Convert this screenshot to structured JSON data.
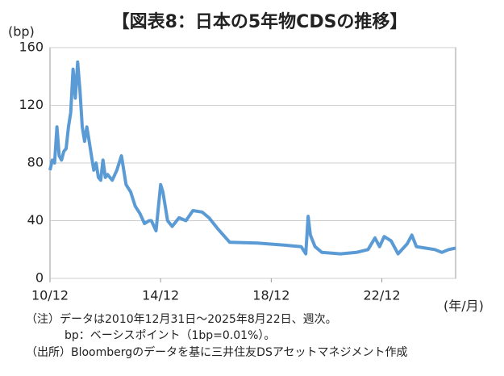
{
  "chart_data": {
    "type": "line",
    "title": "【図表8：日本の5年物CDSの推移】",
    "y_label": "(bp)",
    "x_label": "(年/月)",
    "notes": [
      "（注）データは2010年12月31日～2025年8月22日、週次。",
      "bp：ベーシスポイント（1bp=0.01%）。",
      "（出所）Bloombergのデータを基に三井住友DSアセットマネジメント作成"
    ],
    "color": "#5b9bd5",
    "grid": true,
    "x": [
      "2010-12",
      "2011-01",
      "2011-02",
      "2011-03",
      "2011-04",
      "2011-05",
      "2011-06",
      "2011-07",
      "2011-08",
      "2011-09",
      "2011-10",
      "2011-11",
      "2011-12",
      "2012-01",
      "2012-02",
      "2012-03",
      "2012-04",
      "2012-05",
      "2012-06",
      "2012-07",
      "2012-08",
      "2012-09",
      "2012-10",
      "2012-11",
      "2012-12",
      "2013-01",
      "2013-03",
      "2013-05",
      "2013-07",
      "2013-09",
      "2013-11",
      "2014-01",
      "2014-03",
      "2014-05",
      "2014-07",
      "2014-08",
      "2014-10",
      "2014-12",
      "2015-01",
      "2015-03",
      "2015-05",
      "2015-08",
      "2015-11",
      "2016-02",
      "2016-06",
      "2016-09",
      "2017-01",
      "2017-06",
      "2018-06",
      "2019-06",
      "2020-01",
      "2020-03",
      "2020-04",
      "2020-05",
      "2020-07",
      "2020-10",
      "2021-06",
      "2022-01",
      "2022-06",
      "2022-09",
      "2022-11",
      "2023-01",
      "2023-04",
      "2023-07",
      "2023-11",
      "2024-01",
      "2024-03",
      "2024-07",
      "2024-11",
      "2025-02",
      "2025-05",
      "2025-08"
    ],
    "values": [
      75,
      82,
      80,
      105,
      85,
      82,
      88,
      90,
      105,
      115,
      145,
      125,
      150,
      130,
      105,
      95,
      105,
      95,
      85,
      75,
      80,
      70,
      68,
      82,
      70,
      72,
      68,
      75,
      85,
      65,
      60,
      50,
      45,
      38,
      40,
      40,
      33,
      65,
      60,
      40,
      36,
      42,
      40,
      47,
      46,
      42,
      34,
      25,
      24.5,
      23,
      22,
      17,
      43,
      30,
      22,
      18,
      17,
      18,
      20,
      28,
      22,
      29,
      26,
      17,
      24,
      30,
      22,
      21,
      20,
      18,
      20,
      21
    ],
    "xlim": [
      "2010-12",
      "2025-08"
    ],
    "xticks": [
      {
        "value": "2010-12",
        "label": "10/12"
      },
      {
        "value": "2014-12",
        "label": "14/12"
      },
      {
        "value": "2018-12",
        "label": "18/12"
      },
      {
        "value": "2022-12",
        "label": "22/12"
      }
    ],
    "ylim": [
      0,
      160
    ],
    "yticks": [
      0,
      40,
      80,
      120,
      160
    ]
  }
}
